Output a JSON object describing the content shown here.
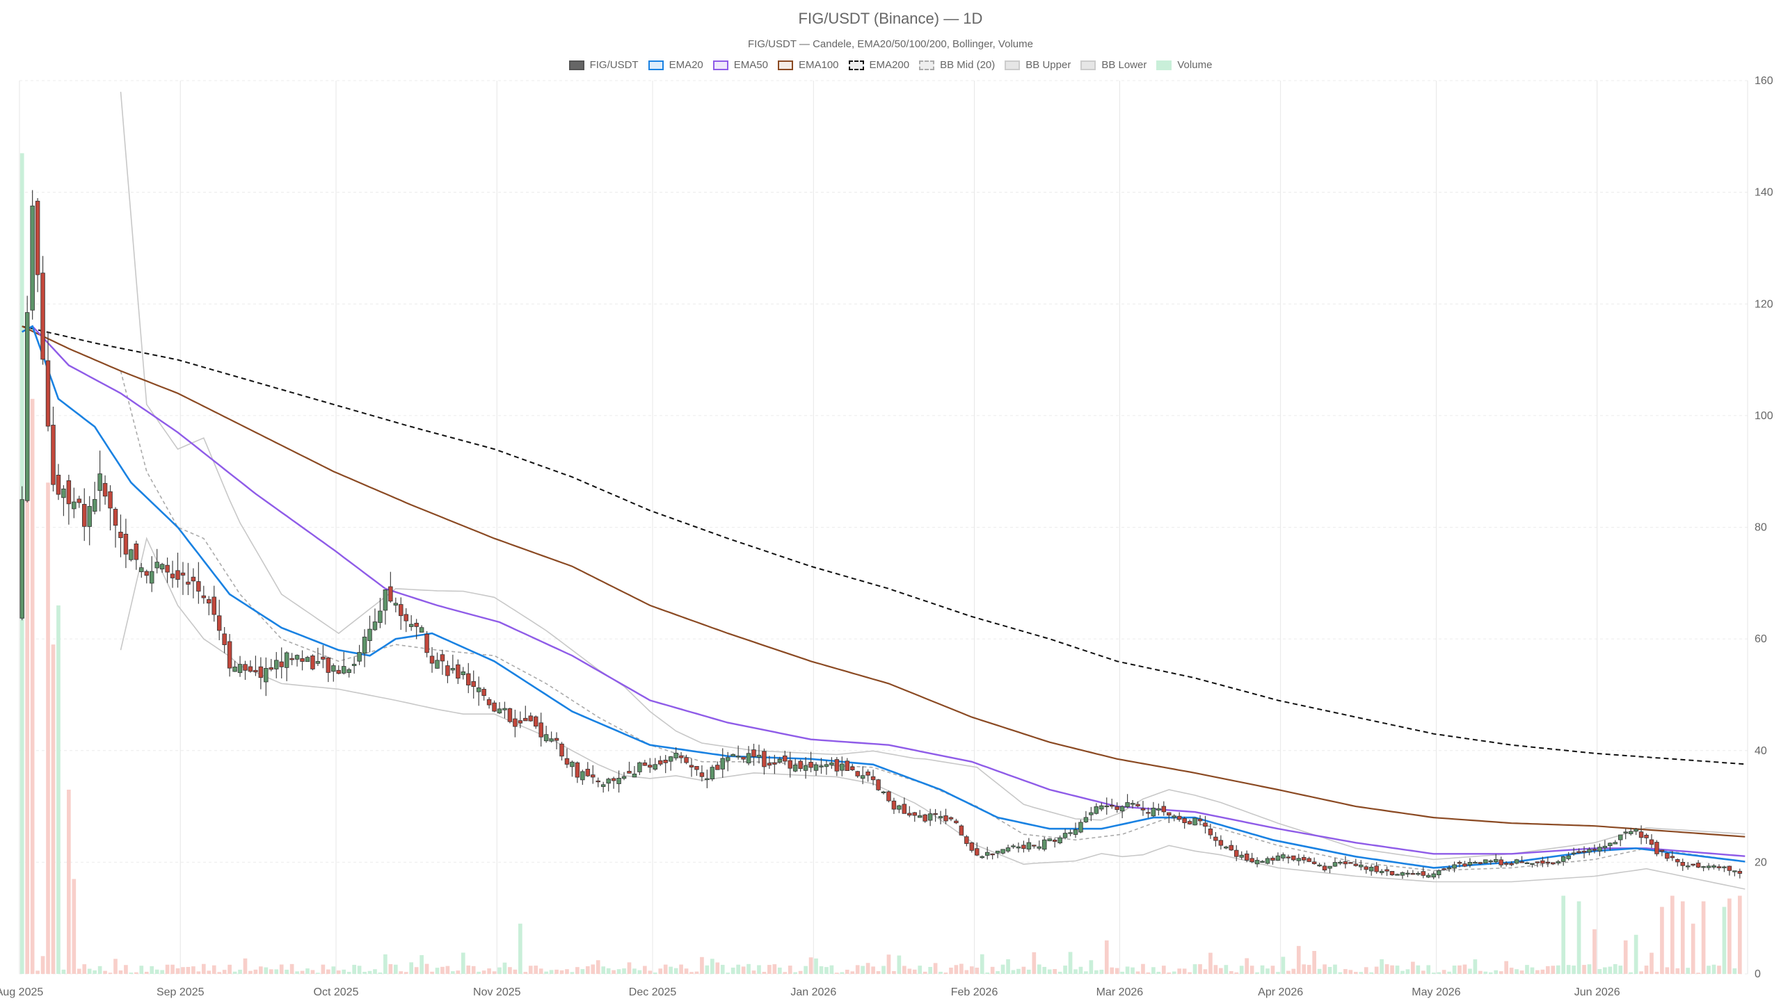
{
  "header": {
    "title": "FIG/USDT (Binance) — 1D",
    "subtitle": "FIG/USDT — Candele, EMA20/50/100/200, Bollinger, Volume"
  },
  "legend": [
    {
      "label": "FIG/USDT",
      "fill": "#666666",
      "stroke": "#555555",
      "dash": false
    },
    {
      "label": "EMA20",
      "fill": "#dcecfb",
      "stroke": "#1a82e2",
      "dash": false
    },
    {
      "label": "EMA50",
      "fill": "#efe8fb",
      "stroke": "#8f5ce8",
      "dash": false
    },
    {
      "label": "EMA100",
      "fill": "#f4ece6",
      "stroke": "#8b4a23",
      "dash": false
    },
    {
      "label": "EMA200",
      "fill": "#eeeeee",
      "stroke": "#111111",
      "dash": true
    },
    {
      "label": "BB Mid (20)",
      "fill": "#eeeeee",
      "stroke": "#aaaaaa",
      "dash": true
    },
    {
      "label": "BB Upper",
      "fill": "#e6e6e6",
      "stroke": "#cccccc",
      "dash": false
    },
    {
      "label": "BB Lower",
      "fill": "#e6e6e6",
      "stroke": "#cccccc",
      "dash": false
    },
    {
      "label": "Volume",
      "fill": "#c9efd9",
      "stroke": "#c9efd9",
      "dash": false
    }
  ],
  "chart_data": {
    "type": "candlestick",
    "x_start": "2025-08-01",
    "x_end": "2026-06-30",
    "x_ticks": [
      {
        "label": "Aug 2025",
        "date": "2025-08-01"
      },
      {
        "label": "Sep 2025",
        "date": "2025-09-01"
      },
      {
        "label": "Oct 2025",
        "date": "2025-10-01"
      },
      {
        "label": "Nov 2025",
        "date": "2025-11-01"
      },
      {
        "label": "Dec 2025",
        "date": "2025-12-01"
      },
      {
        "label": "Jan 2026",
        "date": "2026-01-01"
      },
      {
        "label": "Feb 2026",
        "date": "2026-02-01"
      },
      {
        "label": "Mar 2026",
        "date": "2026-03-01"
      },
      {
        "label": "Apr 2026",
        "date": "2026-04-01"
      },
      {
        "label": "May 2026",
        "date": "2026-05-01"
      },
      {
        "label": "Jun 2026",
        "date": "2026-06-01"
      }
    ],
    "y_ticks": [
      0,
      20,
      40,
      60,
      80,
      100,
      120,
      140,
      160
    ],
    "ylim": [
      0,
      160
    ],
    "grid": true,
    "legend_position": "top",
    "colors": {
      "up": "#5d9469",
      "down": "#c2473b",
      "vol_up": "#c9efd9",
      "vol_down": "#f8cfca"
    },
    "close_anchors": [
      [
        "2025-07-31",
        116
      ],
      [
        "2025-08-01",
        85
      ],
      [
        "2025-08-02",
        120
      ],
      [
        "2025-08-03",
        135
      ],
      [
        "2025-08-05",
        112
      ],
      [
        "2025-08-07",
        88
      ],
      [
        "2025-08-10",
        86
      ],
      [
        "2025-08-13",
        82
      ],
      [
        "2025-08-16",
        88
      ],
      [
        "2025-08-19",
        80
      ],
      [
        "2025-08-23",
        73
      ],
      [
        "2025-08-28",
        72
      ],
      [
        "2025-09-02",
        70
      ],
      [
        "2025-09-06",
        68
      ],
      [
        "2025-09-10",
        56
      ],
      [
        "2025-09-14",
        53
      ],
      [
        "2025-09-18",
        55
      ],
      [
        "2025-09-22",
        57
      ],
      [
        "2025-09-26",
        56
      ],
      [
        "2025-09-30",
        54
      ],
      [
        "2025-10-04",
        56
      ],
      [
        "2025-10-07",
        62
      ],
      [
        "2025-10-10",
        69
      ],
      [
        "2025-10-13",
        63
      ],
      [
        "2025-10-16",
        63
      ],
      [
        "2025-10-19",
        57
      ],
      [
        "2025-10-23",
        54
      ],
      [
        "2025-10-27",
        52
      ],
      [
        "2025-10-31",
        48
      ],
      [
        "2025-11-04",
        45
      ],
      [
        "2025-11-08",
        44
      ],
      [
        "2025-11-12",
        41
      ],
      [
        "2025-11-16",
        36
      ],
      [
        "2025-11-20",
        34
      ],
      [
        "2025-11-24",
        35
      ],
      [
        "2025-11-28",
        37
      ],
      [
        "2025-12-02",
        38
      ],
      [
        "2025-12-06",
        39
      ],
      [
        "2025-12-10",
        35
      ],
      [
        "2025-12-14",
        38
      ],
      [
        "2025-12-18",
        39
      ],
      [
        "2025-12-22",
        38
      ],
      [
        "2025-12-26",
        38
      ],
      [
        "2025-12-30",
        37
      ],
      [
        "2026-01-03",
        37
      ],
      [
        "2026-01-07",
        37
      ],
      [
        "2026-01-11",
        35
      ],
      [
        "2026-01-15",
        31
      ],
      [
        "2026-01-19",
        28
      ],
      [
        "2026-01-23",
        28
      ],
      [
        "2026-01-27",
        28
      ],
      [
        "2026-01-31",
        22
      ],
      [
        "2026-02-04",
        21
      ],
      [
        "2026-02-08",
        23
      ],
      [
        "2026-02-12",
        23
      ],
      [
        "2026-02-16",
        24
      ],
      [
        "2026-02-20",
        26
      ],
      [
        "2026-02-24",
        30
      ],
      [
        "2026-02-28",
        30
      ],
      [
        "2026-03-04",
        30
      ],
      [
        "2026-03-08",
        29
      ],
      [
        "2026-03-12",
        28
      ],
      [
        "2026-03-16",
        27
      ],
      [
        "2026-03-20",
        23
      ],
      [
        "2026-03-24",
        21
      ],
      [
        "2026-03-28",
        20
      ],
      [
        "2026-04-01",
        21
      ],
      [
        "2026-04-05",
        20
      ],
      [
        "2026-04-09",
        19
      ],
      [
        "2026-04-13",
        20
      ],
      [
        "2026-04-17",
        19
      ],
      [
        "2026-04-21",
        18
      ],
      [
        "2026-04-25",
        18
      ],
      [
        "2026-04-29",
        18
      ],
      [
        "2026-05-03",
        19
      ],
      [
        "2026-05-07",
        20
      ],
      [
        "2026-05-11",
        20
      ],
      [
        "2026-05-15",
        20
      ],
      [
        "2026-05-19",
        20
      ],
      [
        "2026-05-23",
        20
      ],
      [
        "2026-05-27",
        22
      ],
      [
        "2026-05-31",
        22
      ],
      [
        "2026-06-04",
        24
      ],
      [
        "2026-06-08",
        26
      ],
      [
        "2026-06-12",
        22
      ],
      [
        "2026-06-16",
        20
      ],
      [
        "2026-06-20",
        19
      ],
      [
        "2026-06-24",
        19
      ],
      [
        "2026-06-28",
        18
      ]
    ],
    "ema20_anchors": [
      [
        "2025-08-01",
        115
      ],
      [
        "2025-08-03",
        116
      ],
      [
        "2025-08-08",
        103
      ],
      [
        "2025-08-15",
        98
      ],
      [
        "2025-08-22",
        88
      ],
      [
        "2025-08-31",
        80
      ],
      [
        "2025-09-10",
        68
      ],
      [
        "2025-09-20",
        62
      ],
      [
        "2025-10-01",
        58
      ],
      [
        "2025-10-07",
        57
      ],
      [
        "2025-10-12",
        60
      ],
      [
        "2025-10-19",
        61
      ],
      [
        "2025-10-31",
        56
      ],
      [
        "2025-11-15",
        47
      ],
      [
        "2025-11-30",
        41
      ],
      [
        "2025-12-15",
        39
      ],
      [
        "2025-12-31",
        38.5
      ],
      [
        "2026-01-12",
        37.5
      ],
      [
        "2026-01-25",
        33
      ],
      [
        "2026-02-05",
        28
      ],
      [
        "2026-02-15",
        26
      ],
      [
        "2026-02-25",
        26
      ],
      [
        "2026-03-07",
        28
      ],
      [
        "2026-03-15",
        28
      ],
      [
        "2026-03-30",
        24
      ],
      [
        "2026-04-15",
        21
      ],
      [
        "2026-04-30",
        19
      ],
      [
        "2026-05-15",
        20
      ],
      [
        "2026-05-31",
        22
      ],
      [
        "2026-06-08",
        22.5
      ],
      [
        "2026-06-30",
        20
      ]
    ],
    "ema50_anchors": [
      [
        "2025-08-01",
        115
      ],
      [
        "2025-08-03",
        116
      ],
      [
        "2025-08-10",
        109
      ],
      [
        "2025-08-20",
        104
      ],
      [
        "2025-08-31",
        97
      ],
      [
        "2025-09-15",
        86
      ],
      [
        "2025-09-30",
        76
      ],
      [
        "2025-10-10",
        69
      ],
      [
        "2025-10-20",
        66
      ],
      [
        "2025-11-01",
        63
      ],
      [
        "2025-11-15",
        57
      ],
      [
        "2025-11-30",
        49
      ],
      [
        "2025-12-15",
        45
      ],
      [
        "2025-12-31",
        42
      ],
      [
        "2026-01-15",
        41
      ],
      [
        "2026-01-31",
        38
      ],
      [
        "2026-02-15",
        33
      ],
      [
        "2026-02-28",
        30
      ],
      [
        "2026-03-15",
        29
      ],
      [
        "2026-03-31",
        26
      ],
      [
        "2026-04-15",
        23.5
      ],
      [
        "2026-04-30",
        21.5
      ],
      [
        "2026-05-15",
        21.5
      ],
      [
        "2026-05-31",
        22.5
      ],
      [
        "2026-06-10",
        22.5
      ],
      [
        "2026-06-30",
        21
      ]
    ],
    "ema100_anchors": [
      [
        "2025-08-01",
        116
      ],
      [
        "2025-08-10",
        112
      ],
      [
        "2025-08-20",
        108
      ],
      [
        "2025-08-31",
        104
      ],
      [
        "2025-09-15",
        97
      ],
      [
        "2025-09-30",
        90
      ],
      [
        "2025-10-15",
        84
      ],
      [
        "2025-10-31",
        78
      ],
      [
        "2025-11-15",
        73
      ],
      [
        "2025-11-30",
        66
      ],
      [
        "2025-12-15",
        61
      ],
      [
        "2025-12-31",
        56
      ],
      [
        "2026-01-15",
        52
      ],
      [
        "2026-01-31",
        46
      ],
      [
        "2026-02-15",
        41.5
      ],
      [
        "2026-02-28",
        38.5
      ],
      [
        "2026-03-15",
        36
      ],
      [
        "2026-03-31",
        33
      ],
      [
        "2026-04-15",
        30
      ],
      [
        "2026-04-30",
        28
      ],
      [
        "2026-05-15",
        27
      ],
      [
        "2026-05-31",
        26.5
      ],
      [
        "2026-06-15",
        25.5
      ],
      [
        "2026-06-30",
        24.5
      ]
    ],
    "ema200_anchors": [
      [
        "2025-08-01",
        116
      ],
      [
        "2025-08-15",
        113
      ],
      [
        "2025-08-31",
        110
      ],
      [
        "2025-09-15",
        106
      ],
      [
        "2025-09-30",
        102
      ],
      [
        "2025-10-15",
        98
      ],
      [
        "2025-10-31",
        94
      ],
      [
        "2025-11-15",
        89
      ],
      [
        "2025-11-30",
        83
      ],
      [
        "2025-12-15",
        78
      ],
      [
        "2025-12-31",
        73
      ],
      [
        "2026-01-15",
        69
      ],
      [
        "2026-01-31",
        64
      ],
      [
        "2026-02-15",
        60
      ],
      [
        "2026-02-28",
        56
      ],
      [
        "2026-03-15",
        53
      ],
      [
        "2026-03-31",
        49
      ],
      [
        "2026-04-15",
        46
      ],
      [
        "2026-04-30",
        43
      ],
      [
        "2026-05-15",
        41
      ],
      [
        "2026-05-31",
        39.5
      ],
      [
        "2026-06-15",
        38.5
      ],
      [
        "2026-06-30",
        37.5
      ]
    ],
    "bb_start": "2025-08-20",
    "bb_mid_anchors": [
      [
        "2025-08-20",
        108
      ],
      [
        "2025-08-25",
        90
      ],
      [
        "2025-08-31",
        80
      ],
      [
        "2025-09-05",
        78
      ],
      [
        "2025-09-12",
        68
      ],
      [
        "2025-09-20",
        60
      ],
      [
        "2025-10-01",
        56
      ],
      [
        "2025-10-12",
        59
      ],
      [
        "2025-10-20",
        58
      ],
      [
        "2025-10-31",
        57
      ],
      [
        "2025-11-10",
        52
      ],
      [
        "2025-11-20",
        46
      ],
      [
        "2025-11-30",
        41
      ],
      [
        "2025-12-10",
        38
      ],
      [
        "2025-12-20",
        38
      ],
      [
        "2025-12-31",
        37.5
      ],
      [
        "2026-01-12",
        37
      ],
      [
        "2026-01-22",
        34
      ],
      [
        "2026-02-01",
        30
      ],
      [
        "2026-02-10",
        25
      ],
      [
        "2026-02-20",
        24
      ],
      [
        "2026-03-01",
        25
      ],
      [
        "2026-03-10",
        28
      ],
      [
        "2026-03-20",
        26
      ],
      [
        "2026-03-31",
        23
      ],
      [
        "2026-04-15",
        20
      ],
      [
        "2026-04-30",
        18.5
      ],
      [
        "2026-05-15",
        19
      ],
      [
        "2026-05-31",
        20.5
      ],
      [
        "2026-06-10",
        22.5
      ],
      [
        "2026-06-30",
        20
      ]
    ],
    "bb_width_anchors": [
      [
        "2025-08-20",
        50
      ],
      [
        "2025-08-25",
        12
      ],
      [
        "2025-08-31",
        14
      ],
      [
        "2025-09-05",
        18
      ],
      [
        "2025-09-10",
        14
      ],
      [
        "2025-09-20",
        8
      ],
      [
        "2025-10-01",
        5
      ],
      [
        "2025-10-12",
        10
      ],
      [
        "2025-10-25",
        11
      ],
      [
        "2025-11-05",
        10
      ],
      [
        "2025-11-15",
        9
      ],
      [
        "2025-11-25",
        8
      ],
      [
        "2025-12-05",
        4
      ],
      [
        "2025-12-20",
        2
      ],
      [
        "2026-01-05",
        2
      ],
      [
        "2026-01-20",
        4
      ],
      [
        "2026-02-01",
        7
      ],
      [
        "2026-02-12",
        5
      ],
      [
        "2026-02-25",
        3
      ],
      [
        "2026-03-05",
        5
      ],
      [
        "2026-03-15",
        5
      ],
      [
        "2026-03-31",
        4
      ],
      [
        "2026-04-15",
        2.5
      ],
      [
        "2026-04-30",
        2
      ],
      [
        "2026-05-15",
        2.5
      ],
      [
        "2026-05-31",
        3
      ],
      [
        "2026-06-15",
        4
      ],
      [
        "2026-06-30",
        5
      ]
    ],
    "volume_spikes": [
      [
        "2025-08-01",
        147,
        "up"
      ],
      [
        "2025-08-02",
        108,
        "down"
      ],
      [
        "2025-08-03",
        103,
        "down"
      ],
      [
        "2025-08-06",
        88,
        "down"
      ],
      [
        "2025-08-07",
        59,
        "down"
      ],
      [
        "2025-08-08",
        66,
        "up"
      ],
      [
        "2025-08-10",
        33,
        "down"
      ],
      [
        "2025-08-11",
        17,
        "down"
      ],
      [
        "2025-10-10",
        3.5,
        "up"
      ],
      [
        "2025-11-05",
        9,
        "up"
      ],
      [
        "2025-06-20",
        0,
        "up"
      ],
      [
        "2026-02-26",
        6,
        "down"
      ],
      [
        "2026-04-04",
        5,
        "down"
      ],
      [
        "2026-05-25",
        14,
        "up"
      ],
      [
        "2026-05-28",
        13,
        "up"
      ],
      [
        "2026-05-31",
        8,
        "down"
      ],
      [
        "2026-06-13",
        12,
        "down"
      ],
      [
        "2026-06-15",
        14,
        "down"
      ],
      [
        "2026-06-17",
        13,
        "down"
      ],
      [
        "2026-06-21",
        13,
        "down"
      ],
      [
        "2026-06-25",
        12,
        "up"
      ],
      [
        "2026-06-26",
        13.5,
        "down"
      ],
      [
        "2026-06-28",
        14,
        "down"
      ],
      [
        "2026-06-29",
        8.5,
        "down"
      ],
      [
        "2026-06-08",
        7,
        "up"
      ],
      [
        "2026-06-06",
        6,
        "down"
      ],
      [
        "2026-06-19",
        9,
        "down"
      ]
    ]
  }
}
